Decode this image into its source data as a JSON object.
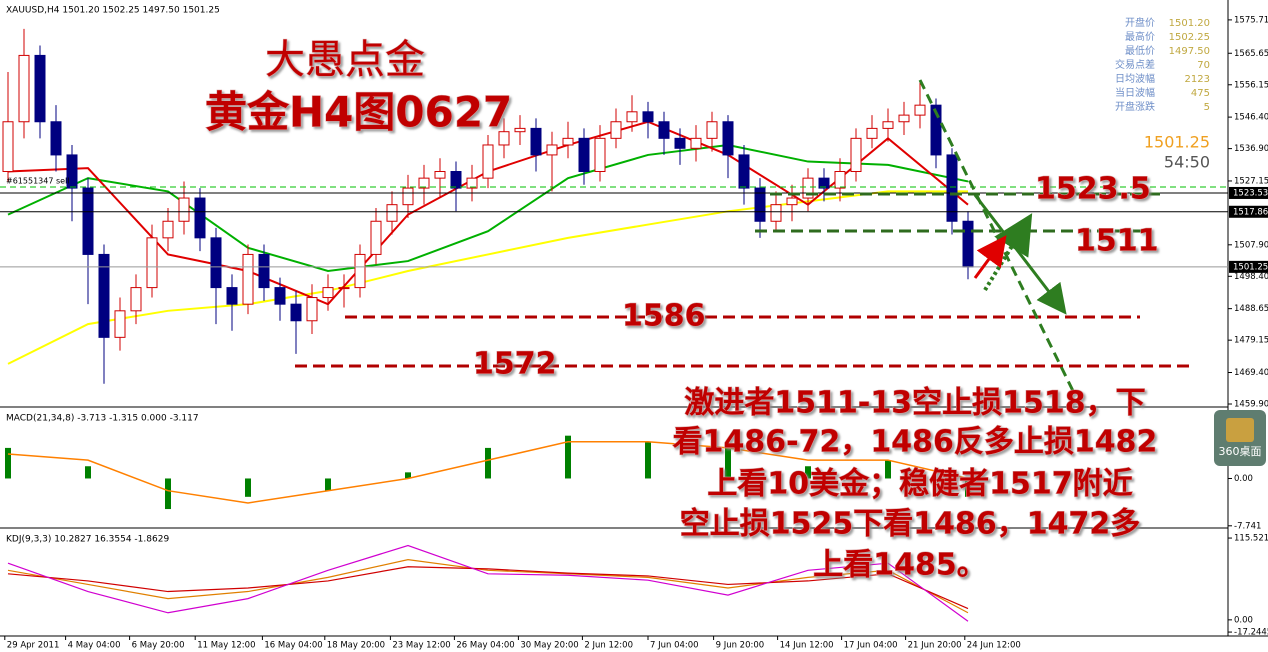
{
  "header": "XAUUSD,H4  1501.20 1502.25 1497.50 1501.25",
  "order_label": "#61551347 sell",
  "info": {
    "labels": [
      "开盘价",
      "最高价",
      "最低价",
      "交易点差",
      "日均波幅",
      "当日波幅",
      "开盘涨跌"
    ],
    "values": [
      "1501.20",
      "1502.25",
      "1497.50",
      "70",
      "2123",
      "475",
      "5"
    ]
  },
  "price": "1501.25",
  "timer": "54:50",
  "widget": "360桌面",
  "annotations": {
    "title1": "大愚点金",
    "title2": "黄金H4图0627",
    "levels": [
      "1523.5",
      "1511",
      "1586",
      "1572"
    ],
    "plan": [
      "激进者1511-13空止损1518，下",
      "看1486-72，1486反多止损1482",
      "上看10美金；稳健者1517附近",
      "空止损1525下看1486，1472多",
      "上看1485。"
    ]
  },
  "chart_data": [
    {
      "type": "candlestick",
      "up_color": "#d00000",
      "down_color": "#000080",
      "open": [
        1530,
        1545,
        1565,
        1545,
        1535,
        1525,
        1505,
        1480,
        1488,
        1495,
        1510,
        1515,
        1522,
        1510,
        1495,
        1490,
        1505,
        1495,
        1490,
        1485,
        1492,
        1495,
        1495,
        1505,
        1515,
        1520,
        1525,
        1528,
        1530,
        1525,
        1528,
        1538,
        1542,
        1543,
        1535,
        1538,
        1540,
        1530,
        1540,
        1545,
        1548,
        1545,
        1540,
        1537,
        1540,
        1545,
        1535,
        1525,
        1515,
        1520,
        1522,
        1528,
        1525,
        1530,
        1540,
        1543,
        1545,
        1547,
        1550,
        1535,
        1515
      ],
      "high": [
        1560,
        1573,
        1568,
        1550,
        1538,
        1528,
        1508,
        1492,
        1499,
        1514,
        1519,
        1527,
        1525,
        1513,
        1499,
        1508,
        1508,
        1498,
        1494,
        1496,
        1499,
        1499,
        1508,
        1519,
        1524,
        1529,
        1532,
        1534,
        1533,
        1532,
        1541,
        1546,
        1547,
        1546,
        1542,
        1545,
        1543,
        1544,
        1549,
        1553,
        1551,
        1548,
        1543,
        1544,
        1548,
        1547,
        1538,
        1528,
        1524,
        1526,
        1531,
        1531,
        1534,
        1543,
        1547,
        1549,
        1551,
        1557,
        1552,
        1537,
        1518
      ],
      "low": [
        1527,
        1540,
        1540,
        1530,
        1515,
        1490,
        1466,
        1476,
        1484,
        1492,
        1506,
        1511,
        1506,
        1484,
        1482,
        1487,
        1491,
        1485,
        1475,
        1481,
        1488,
        1489,
        1492,
        1502,
        1511,
        1516,
        1520,
        1522,
        1518,
        1521,
        1525,
        1534,
        1538,
        1530,
        1524,
        1534,
        1526,
        1527,
        1537,
        1542,
        1540,
        1535,
        1532,
        1533,
        1536,
        1528,
        1520,
        1510,
        1512,
        1515,
        1518,
        1521,
        1521,
        1527,
        1537,
        1539,
        1541,
        1543,
        1531,
        1511,
        1497.5
      ],
      "close": [
        1545,
        1565,
        1545,
        1535,
        1525,
        1505,
        1480,
        1488,
        1495,
        1510,
        1515,
        1522,
        1510,
        1495,
        1490,
        1505,
        1495,
        1490,
        1485,
        1492,
        1495,
        1495,
        1505,
        1515,
        1520,
        1525,
        1528,
        1530,
        1525,
        1528,
        1538,
        1542,
        1543,
        1535,
        1538,
        1540,
        1530,
        1540,
        1545,
        1548,
        1545,
        1540,
        1537,
        1540,
        1545,
        1535,
        1525,
        1515,
        1520,
        1522,
        1528,
        1525,
        1530,
        1540,
        1543,
        1545,
        1547,
        1550,
        1535,
        1515,
        1501.25
      ],
      "series": [
        {
          "color": "#ffff00",
          "x": [
            0,
            5,
            10,
            15,
            20,
            25,
            30,
            35,
            40,
            45,
            50,
            55,
            60
          ],
          "values": [
            1472,
            1484,
            1488,
            1490,
            1494,
            1500,
            1505,
            1510,
            1514,
            1518,
            1521,
            1524,
            1524
          ]
        },
        {
          "color": "#00b000",
          "x": [
            0,
            5,
            10,
            15,
            20,
            25,
            30,
            35,
            40,
            45,
            50,
            55,
            60
          ],
          "values": [
            1517,
            1528,
            1524,
            1507,
            1500,
            1503,
            1512,
            1528,
            1535,
            1538,
            1533,
            1532,
            1527
          ]
        },
        {
          "color": "#e00000",
          "x": [
            0,
            5,
            10,
            15,
            20,
            25,
            30,
            35,
            40,
            45,
            50,
            55,
            60
          ],
          "values": [
            1530,
            1531,
            1505,
            1500,
            1490,
            1517,
            1530,
            1538,
            1545,
            1535,
            1520,
            1540,
            1520
          ]
        }
      ],
      "level_lines": [
        1523.53,
        1517.86,
        1501.25
      ],
      "xlim": [
        -0.5,
        76.25
      ],
      "xticks": [
        {
          "value": -0.2,
          "label": "29 Apr 2011"
        },
        {
          "value": 3.6,
          "label": "4 May 04:00"
        },
        {
          "value": 7.6,
          "label": "6 May 20:00"
        },
        {
          "value": 11.7,
          "label": "11 May 12:00"
        },
        {
          "value": 15.9,
          "label": "16 May 04:00"
        },
        {
          "value": 19.8,
          "label": "18 May 20:00"
        },
        {
          "value": 23.9,
          "label": "23 May 12:00"
        },
        {
          "value": 27.9,
          "label": "26 May 04:00"
        },
        {
          "value": 31.9,
          "label": "30 May 20:00"
        },
        {
          "value": 35.9,
          "label": "2 Jun 12:00"
        },
        {
          "value": 40,
          "label": "7 Jun 04:00"
        },
        {
          "value": 44.1,
          "label": "9 Jun 20:00"
        },
        {
          "value": 48.1,
          "label": "14 Jun 12:00"
        },
        {
          "value": 52.1,
          "label": "17 Jun 04:00"
        },
        {
          "value": 56.1,
          "label": "21 Jun 20:00"
        },
        {
          "value": 59.8,
          "label": "24 Jun 12:00"
        }
      ],
      "ylim": [
        1459.0,
        1580.2
      ],
      "yticks": [
        1575.71,
        1565.65,
        1556.15,
        {
          "value": 1546.4,
          "label": "1546.40"
        },
        {
          "value": 1536.9,
          "label": "1536.90"
        },
        1527.15,
        {
          "value": 1507.9,
          "label": "1507.90"
        },
        {
          "value": 1498.4,
          "label": "1498.40"
        },
        1488.65,
        1479.15,
        {
          "value": 1469.4,
          "label": "1469.40"
        },
        {
          "value": 1459.9,
          "label": "1459.90"
        }
      ]
    },
    {
      "type": "macd",
      "title": "MACD(21,34,8) -3.713 -1.315 0.000 -3.117",
      "x": [
        0,
        5,
        10,
        15,
        20,
        25,
        30,
        35,
        40,
        45,
        50,
        55,
        60
      ],
      "histogram": {
        "color": "#008000",
        "values": [
          5,
          2,
          -5,
          -3,
          -2,
          1,
          5,
          7,
          6,
          5,
          2,
          3,
          -3
        ]
      },
      "signal": {
        "color": "#ff8000",
        "values": [
          4,
          3,
          -2,
          -4,
          -2,
          0,
          3,
          6,
          6,
          5,
          3,
          3,
          0
        ]
      },
      "ylim": [
        -8.1,
        11.2
      ],
      "yticks": [
        {
          "value": 0,
          "label": "0.00"
        },
        -7.741
      ]
    },
    {
      "type": "kdj",
      "title": "KDJ(9,3,3) 10.2827 16.3554 -1.8629",
      "x": [
        0,
        5,
        10,
        15,
        20,
        25,
        30,
        35,
        40,
        45,
        50,
        55,
        60
      ],
      "series": [
        {
          "color": "#e08000",
          "values": [
            70,
            50,
            30,
            40,
            60,
            85,
            70,
            65,
            60,
            45,
            60,
            70,
            10
          ]
        },
        {
          "color": "#d00000",
          "values": [
            65,
            55,
            40,
            45,
            55,
            75,
            72,
            66,
            62,
            50,
            55,
            65,
            16
          ]
        },
        {
          "color": "#d000d0",
          "values": [
            80,
            40,
            10,
            30,
            70,
            105,
            65,
            63,
            56,
            35,
            70,
            80,
            -2
          ]
        }
      ],
      "ylim": [
        -22.8,
        126.9
      ],
      "yticks": [
        115.5212,
        {
          "value": 0,
          "label": "0.00"
        },
        -17.2445
      ]
    }
  ]
}
